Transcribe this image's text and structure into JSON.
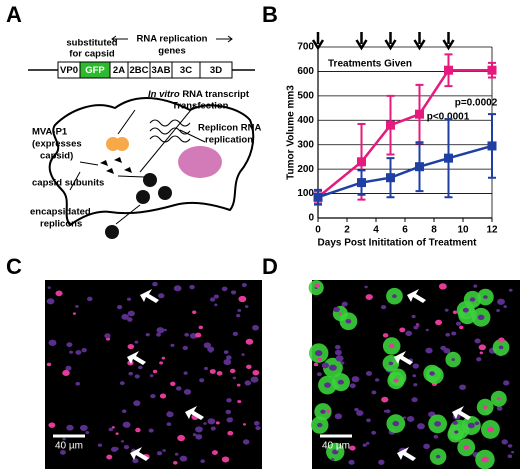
{
  "panel_labels": [
    "A",
    "B",
    "C",
    "D"
  ],
  "diagram": {
    "substituted": [
      "substituted",
      "for capsid"
    ],
    "replication_genes": [
      "RNA replication",
      "genes"
    ],
    "genes": [
      "VP0",
      "GFP",
      "2A",
      "2BC",
      "3AB",
      "3C",
      "3D"
    ],
    "transfection": [
      "In vitro",
      "RNA transcript",
      "Transfection"
    ],
    "replicon": [
      "Replicon RNA",
      "replication"
    ],
    "mva": [
      "MVA-P1",
      "(expresses",
      "capsid)"
    ],
    "subunits": "capsid subunits",
    "encapsidated": [
      "encapsidated",
      "replicons"
    ]
  },
  "chart_data": {
    "type": "line",
    "xlabel": "Days Post Inititation of Treatment",
    "ylabel": "Tumor Volume mm3",
    "x": [
      0,
      3,
      5,
      7,
      9,
      12
    ],
    "series": [
      {
        "color": "#e6197f",
        "values": [
          85,
          230,
          380,
          425,
          605,
          605
        ],
        "errors": [
          25,
          155,
          120,
          120,
          65,
          30
        ]
      },
      {
        "color": "#1f3fa3",
        "values": [
          85,
          145,
          165,
          210,
          245,
          295
        ],
        "errors": [
          30,
          50,
          80,
          100,
          160,
          130
        ]
      }
    ],
    "xlim": [
      0,
      12
    ],
    "xticks": [
      0,
      2,
      4,
      6,
      8,
      10,
      12
    ],
    "ylim": [
      0,
      700
    ],
    "yticks": [
      0,
      100,
      200,
      300,
      400,
      500,
      600,
      700
    ],
    "grid": true,
    "treatment_days": [
      0,
      3,
      5,
      7,
      9
    ],
    "annotations": [
      "Treatments Given",
      "p<0.0001",
      "p=0.0002"
    ]
  },
  "micrographs": {
    "scale_bar": "40 µm"
  }
}
